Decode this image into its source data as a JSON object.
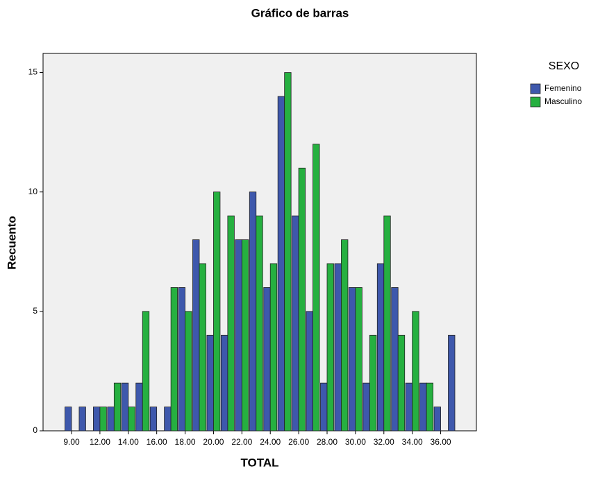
{
  "chart_data": {
    "type": "bar",
    "title": "Gráfico de barras",
    "x_label": "TOTAL",
    "y_label": "Recuento",
    "legend_title": "SEXO",
    "legend_position": "right",
    "categories": [
      "9.00",
      null,
      "12.00",
      null,
      "14.00",
      null,
      "16.00",
      null,
      "18.00",
      null,
      "20.00",
      null,
      "22.00",
      null,
      "24.00",
      null,
      "26.00",
      null,
      "28.00",
      null,
      "30.00",
      null,
      "32.00",
      null,
      "34.00",
      null,
      "36.00",
      null
    ],
    "series": [
      {
        "name": "Femenino",
        "color": "#3e58ac",
        "values": [
          1,
          1,
          1,
          1,
          2,
          2,
          1,
          1,
          6,
          8,
          4,
          4,
          8,
          10,
          6,
          14,
          9,
          5,
          2,
          7,
          6,
          2,
          7,
          6,
          2,
          2,
          1,
          4
        ]
      },
      {
        "name": "Masculino",
        "color": "#26b040",
        "values": [
          0,
          0,
          1,
          2,
          1,
          5,
          0,
          6,
          5,
          7,
          10,
          9,
          8,
          9,
          7,
          15,
          11,
          12,
          7,
          8,
          6,
          4,
          9,
          4,
          5,
          2,
          0,
          0
        ]
      }
    ],
    "ylim": [
      0,
      15.8
    ],
    "yticks": [
      0,
      5,
      10,
      15
    ],
    "grid": false
  }
}
